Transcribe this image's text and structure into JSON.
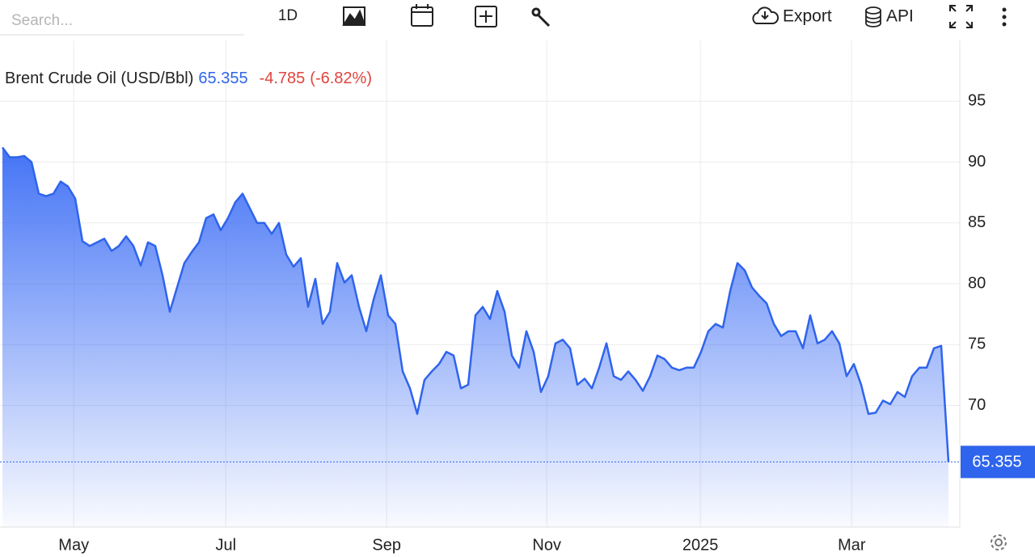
{
  "toolbar": {
    "search_placeholder": "Search...",
    "interval": "1D",
    "export": "Export",
    "api": "API"
  },
  "chart_data": {
    "type": "area",
    "title": "Brent Crude Oil (USD/Bbl)",
    "price": "65.355",
    "change": "-4.785",
    "change_pct": "(-6.82%)",
    "series": [
      {
        "color": "#2f64ec",
        "values": [
          91.2,
          90.4,
          90.4,
          90.5,
          90,
          87.4,
          87.2,
          87.4,
          88.4,
          88,
          87,
          83.5,
          83.1,
          83.4,
          83.7,
          82.7,
          83.1,
          83.9,
          83.1,
          81.5,
          83.4,
          83.1,
          80.7,
          77.7,
          79.7,
          81.7,
          82.6,
          83.4,
          85.4,
          85.7,
          84.4,
          85.4,
          86.7,
          87.4,
          86.2,
          85,
          85,
          84.1,
          85,
          82.4,
          81.4,
          82.1,
          78.1,
          80.4,
          76.7,
          77.7,
          81.7,
          80.1,
          80.7,
          78.1,
          76.1,
          78.7,
          80.7,
          77.4,
          76.7,
          72.8,
          71.4,
          69.3,
          72.1,
          72.8,
          73.4,
          74.4,
          74.1,
          71.4,
          71.7,
          77.4,
          78.1,
          77.1,
          79.4,
          77.7,
          74.1,
          73.1,
          76.1,
          74.4,
          71.1,
          72.4,
          75.1,
          75.4,
          74.7,
          71.7,
          72.2,
          71.4,
          73.1,
          75.1,
          72.4,
          72.1,
          72.8,
          72.1,
          71.2,
          72.4,
          74.1,
          73.8,
          73.1,
          72.9,
          73.1,
          73.1,
          74.4,
          76.1,
          76.7,
          76.4,
          79.4,
          81.7,
          81.1,
          79.7,
          79,
          78.4,
          76.7,
          75.7,
          76.1,
          76.1,
          74.7,
          77.4,
          75.1,
          75.4,
          76.1,
          75.1,
          72.4,
          73.4,
          71.7,
          69.3,
          69.4,
          70.4,
          70.1,
          71.1,
          70.7,
          72.4,
          73.1,
          73.1,
          74.7,
          74.9,
          65.355
        ]
      }
    ],
    "xlim": [
      0,
      129
    ],
    "xticks": [
      {
        "value": 9.8,
        "label": "May"
      },
      {
        "value": 30.7,
        "label": "Jul"
      },
      {
        "value": 52.8,
        "label": "Sep"
      },
      {
        "value": 74.8,
        "label": "Nov"
      },
      {
        "value": 95.9,
        "label": "2025"
      },
      {
        "value": 116.7,
        "label": "Mar"
      }
    ],
    "ylim": [
      60,
      100
    ],
    "yticks": [
      70,
      75,
      80,
      85,
      90,
      95
    ],
    "grid": true
  }
}
